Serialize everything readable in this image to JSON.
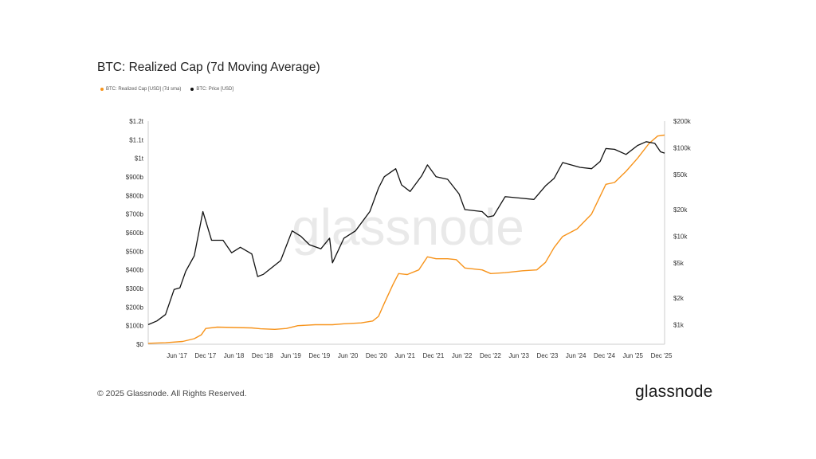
{
  "chart_data": {
    "type": "line",
    "title": "BTC: Realized Cap (7d Moving Average)",
    "watermark": "glassnode",
    "legend": [
      {
        "name": "BTC: Realized Cap [USD] (7d sma)",
        "color": "#f7931a"
      },
      {
        "name": "BTC: Price [USD]",
        "color": "#111111"
      }
    ],
    "x_ticks": [
      "Jun '17",
      "Dec '17",
      "Jun '18",
      "Dec '18",
      "Jun '19",
      "Dec '19",
      "Jun '20",
      "Dec '20",
      "Jun '21",
      "Dec '21",
      "Jun '22",
      "Dec '22",
      "Jun '23",
      "Dec '23",
      "Jun '24",
      "Dec '24",
      "Jun '25",
      "Dec '25"
    ],
    "x_range": [
      2017.0,
      2025.97
    ],
    "y_left": {
      "scale": "linear",
      "ylim": [
        0,
        1200
      ],
      "ticks": [
        {
          "v": 0,
          "label": "$0"
        },
        {
          "v": 100,
          "label": "$100b"
        },
        {
          "v": 200,
          "label": "$200b"
        },
        {
          "v": 300,
          "label": "$300b"
        },
        {
          "v": 400,
          "label": "$400b"
        },
        {
          "v": 500,
          "label": "$500b"
        },
        {
          "v": 600,
          "label": "$600b"
        },
        {
          "v": 700,
          "label": "$700b"
        },
        {
          "v": 800,
          "label": "$800b"
        },
        {
          "v": 900,
          "label": "$900b"
        },
        {
          "v": 1000,
          "label": "$1t"
        },
        {
          "v": 1100,
          "label": "$1.1t"
        },
        {
          "v": 1200,
          "label": "$1.2t"
        }
      ]
    },
    "y_right": {
      "scale": "log",
      "ylim": [
        600,
        200000
      ],
      "ticks": [
        {
          "v": 1000,
          "label": "$1k"
        },
        {
          "v": 2000,
          "label": "$2k"
        },
        {
          "v": 5000,
          "label": "$5k"
        },
        {
          "v": 10000,
          "label": "$10k"
        },
        {
          "v": 20000,
          "label": "$20k"
        },
        {
          "v": 50000,
          "label": "$50k"
        },
        {
          "v": 100000,
          "label": "$100k"
        },
        {
          "v": 200000,
          "label": "$200k"
        }
      ]
    },
    "series": [
      {
        "name": "BTC: Realized Cap [USD] (7d sma)",
        "axis": "left",
        "unit": "billion USD",
        "points": [
          [
            2017.0,
            5
          ],
          [
            2017.3,
            8
          ],
          [
            2017.6,
            15
          ],
          [
            2017.8,
            30
          ],
          [
            2017.92,
            50
          ],
          [
            2018.0,
            85
          ],
          [
            2018.2,
            92
          ],
          [
            2018.5,
            90
          ],
          [
            2018.8,
            88
          ],
          [
            2018.95,
            83
          ],
          [
            2019.2,
            80
          ],
          [
            2019.4,
            85
          ],
          [
            2019.6,
            100
          ],
          [
            2019.9,
            105
          ],
          [
            2020.2,
            105
          ],
          [
            2020.4,
            110
          ],
          [
            2020.7,
            115
          ],
          [
            2020.9,
            125
          ],
          [
            2021.0,
            150
          ],
          [
            2021.1,
            220
          ],
          [
            2021.25,
            320
          ],
          [
            2021.35,
            380
          ],
          [
            2021.5,
            375
          ],
          [
            2021.7,
            400
          ],
          [
            2021.85,
            470
          ],
          [
            2022.0,
            460
          ],
          [
            2022.2,
            460
          ],
          [
            2022.35,
            455
          ],
          [
            2022.5,
            410
          ],
          [
            2022.8,
            400
          ],
          [
            2022.95,
            380
          ],
          [
            2023.2,
            385
          ],
          [
            2023.5,
            395
          ],
          [
            2023.75,
            400
          ],
          [
            2023.9,
            440
          ],
          [
            2024.05,
            520
          ],
          [
            2024.2,
            580
          ],
          [
            2024.45,
            620
          ],
          [
            2024.7,
            700
          ],
          [
            2024.95,
            860
          ],
          [
            2025.1,
            870
          ],
          [
            2025.3,
            930
          ],
          [
            2025.5,
            1000
          ],
          [
            2025.7,
            1080
          ],
          [
            2025.85,
            1120
          ],
          [
            2025.97,
            1125
          ]
        ]
      },
      {
        "name": "BTC: Price [USD]",
        "axis": "right",
        "unit": "USD",
        "points": [
          [
            2017.0,
            1000
          ],
          [
            2017.15,
            1100
          ],
          [
            2017.3,
            1300
          ],
          [
            2017.45,
            2500
          ],
          [
            2017.55,
            2600
          ],
          [
            2017.65,
            4000
          ],
          [
            2017.8,
            6000
          ],
          [
            2017.95,
            19000
          ],
          [
            2018.1,
            9000
          ],
          [
            2018.3,
            9000
          ],
          [
            2018.45,
            6500
          ],
          [
            2018.6,
            7500
          ],
          [
            2018.8,
            6300
          ],
          [
            2018.9,
            3500
          ],
          [
            2019.0,
            3700
          ],
          [
            2019.3,
            5300
          ],
          [
            2019.5,
            11500
          ],
          [
            2019.65,
            10000
          ],
          [
            2019.8,
            8000
          ],
          [
            2020.0,
            7200
          ],
          [
            2020.15,
            9500
          ],
          [
            2020.2,
            5000
          ],
          [
            2020.4,
            9500
          ],
          [
            2020.6,
            11500
          ],
          [
            2020.85,
            19000
          ],
          [
            2021.0,
            35000
          ],
          [
            2021.1,
            47000
          ],
          [
            2021.3,
            58000
          ],
          [
            2021.4,
            38000
          ],
          [
            2021.55,
            32000
          ],
          [
            2021.75,
            48000
          ],
          [
            2021.85,
            64000
          ],
          [
            2022.0,
            47000
          ],
          [
            2022.2,
            44000
          ],
          [
            2022.4,
            30000
          ],
          [
            2022.5,
            20000
          ],
          [
            2022.8,
            19000
          ],
          [
            2022.9,
            16500
          ],
          [
            2023.0,
            17000
          ],
          [
            2023.2,
            28000
          ],
          [
            2023.45,
            27000
          ],
          [
            2023.7,
            26000
          ],
          [
            2023.9,
            37000
          ],
          [
            2024.05,
            45000
          ],
          [
            2024.2,
            68000
          ],
          [
            2024.5,
            60000
          ],
          [
            2024.7,
            58000
          ],
          [
            2024.85,
            70000
          ],
          [
            2024.95,
            98000
          ],
          [
            2025.1,
            96000
          ],
          [
            2025.3,
            84000
          ],
          [
            2025.5,
            106000
          ],
          [
            2025.65,
            117000
          ],
          [
            2025.8,
            112000
          ],
          [
            2025.9,
            90000
          ],
          [
            2025.97,
            87000
          ]
        ]
      }
    ]
  },
  "footer": {
    "copyright": "© 2025 Glassnode. All Rights Reserved.",
    "logo_text": "glassnode"
  }
}
